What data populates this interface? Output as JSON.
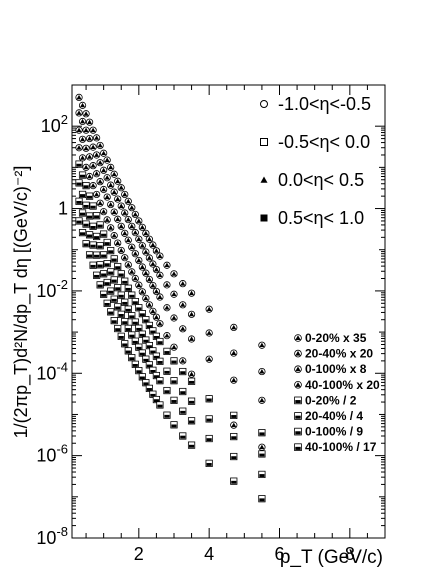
{
  "chart_data": {
    "type": "scatter",
    "xlabel": "p_T (GeV/c)",
    "ylabel": "1/(2πp_T)d²N/dp_T dη [(GeV/c)⁻²]",
    "xlim": [
      0.1,
      9.0
    ],
    "ylim": [
      1e-08,
      1000
    ],
    "yscale": "log",
    "grid": false,
    "x_ticks": [
      2,
      4,
      6,
      8
    ],
    "y_ticks": [
      "10^2",
      "1",
      "10^-2",
      "10^-4",
      "10^-6",
      "10^-8"
    ],
    "eta_legend": [
      {
        "label": "-1.0<η<-0.5",
        "marker": "open-circle"
      },
      {
        "label": "-0.5<η< 0.0",
        "marker": "open-square"
      },
      {
        "label": "0.0<η< 0.5",
        "marker": "filled-triangle"
      },
      {
        "label": "0.5<η< 1.0",
        "marker": "filled-square"
      }
    ],
    "centrality_legend": [
      {
        "label": "0-20% x 35",
        "marker": "triangle-in-circle"
      },
      {
        "label": "20-40% x 20",
        "marker": "triangle-in-circle"
      },
      {
        "label": "0-100% x 8",
        "marker": "triangle-in-circle"
      },
      {
        "label": "40-100% x 20",
        "marker": "triangle-in-circle"
      },
      {
        "label": "0-20% / 2",
        "marker": "square-in-square"
      },
      {
        "label": "20-40% / 4",
        "marker": "square-in-square"
      },
      {
        "label": "0-100% / 9",
        "marker": "square-in-square"
      },
      {
        "label": "40-100% / 17",
        "marker": "square-in-square"
      }
    ],
    "series": [
      {
        "name": "0-20% x 35",
        "marker": "circle-set",
        "x": [
          0.3,
          0.4,
          0.5,
          0.6,
          0.7,
          0.8,
          0.9,
          1.0,
          1.1,
          1.2,
          1.3,
          1.4,
          1.5,
          1.6,
          1.7,
          1.8,
          1.9,
          2.0,
          2.1,
          2.2,
          2.3,
          2.4,
          2.5,
          2.6,
          2.8,
          3.0,
          3.25,
          3.5,
          4.0,
          4.7,
          5.5
        ],
        "y": [
          500,
          320,
          200,
          125,
          80,
          52,
          34,
          22,
          15,
          10,
          6.8,
          4.6,
          3.2,
          2.2,
          1.5,
          1.05,
          0.72,
          0.5,
          0.35,
          0.25,
          0.18,
          0.13,
          0.094,
          0.07,
          0.042,
          0.026,
          0.015,
          0.0088,
          0.0036,
          0.0013,
          0.00048
        ]
      },
      {
        "name": "20-40% x 20",
        "marker": "circle-set",
        "x": [
          0.3,
          0.4,
          0.5,
          0.6,
          0.7,
          0.8,
          0.9,
          1.0,
          1.1,
          1.2,
          1.3,
          1.4,
          1.5,
          1.6,
          1.7,
          1.8,
          1.9,
          2.0,
          2.1,
          2.2,
          2.3,
          2.4,
          2.5,
          2.6,
          2.8,
          3.0,
          3.25,
          3.5,
          4.0,
          4.7,
          5.5
        ],
        "y": [
          210,
          130,
          80,
          50,
          31,
          20,
          13,
          8.5,
          5.6,
          3.7,
          2.5,
          1.7,
          1.15,
          0.78,
          0.54,
          0.37,
          0.26,
          0.18,
          0.125,
          0.088,
          0.063,
          0.045,
          0.033,
          0.024,
          0.014,
          0.0083,
          0.0046,
          0.0027,
          0.00095,
          0.00031,
          0.00011
        ]
      },
      {
        "name": "0-100% x 8",
        "marker": "circle-set",
        "x": [
          0.3,
          0.4,
          0.5,
          0.6,
          0.7,
          0.8,
          0.9,
          1.0,
          1.1,
          1.2,
          1.3,
          1.4,
          1.5,
          1.6,
          1.7,
          1.8,
          1.9,
          2.0,
          2.1,
          2.2,
          2.3,
          2.4,
          2.5,
          2.6,
          2.8,
          3.0,
          3.25,
          3.5,
          4.0,
          4.7,
          5.5
        ],
        "y": [
          80,
          48,
          29,
          18,
          11,
          7,
          4.5,
          2.9,
          1.9,
          1.25,
          0.82,
          0.55,
          0.37,
          0.25,
          0.17,
          0.115,
          0.08,
          0.055,
          0.038,
          0.027,
          0.019,
          0.0135,
          0.0097,
          0.0071,
          0.0039,
          0.0022,
          0.0012,
          0.00068,
          0.00022,
          6.8e-05,
          2.2e-05
        ]
      },
      {
        "name": "40-100% x 20",
        "marker": "circle-set",
        "x": [
          0.3,
          0.4,
          0.5,
          0.6,
          0.7,
          0.8,
          0.9,
          1.0,
          1.1,
          1.2,
          1.3,
          1.4,
          1.5,
          1.6,
          1.7,
          1.8,
          1.9,
          2.0,
          2.1,
          2.2,
          2.3,
          2.4,
          2.5,
          2.6,
          2.8,
          3.0,
          3.25,
          3.5,
          4.0,
          4.7,
          5.5
        ],
        "y": [
          30,
          17,
          10,
          6,
          3.6,
          2.2,
          1.35,
          0.84,
          0.53,
          0.34,
          0.22,
          0.145,
          0.096,
          0.064,
          0.043,
          0.029,
          0.02,
          0.0138,
          0.0095,
          0.0066,
          0.0046,
          0.0032,
          0.0023,
          0.0016,
          0.00082,
          0.00043,
          0.0002,
          9.5e-05,
          2.4e-05,
          5.5e-06,
          1.6e-06
        ]
      },
      {
        "name": "0-20% / 2",
        "marker": "square-set",
        "x": [
          0.3,
          0.4,
          0.5,
          0.6,
          0.7,
          0.8,
          0.9,
          1.0,
          1.1,
          1.2,
          1.3,
          1.4,
          1.5,
          1.6,
          1.7,
          1.8,
          1.9,
          2.0,
          2.1,
          2.2,
          2.3,
          2.4,
          2.5,
          2.6,
          2.8,
          3.0,
          3.25,
          3.5,
          4.0,
          4.7,
          5.5
        ],
        "y": [
          12,
          6.5,
          3.6,
          2.0,
          1.15,
          0.67,
          0.4,
          0.24,
          0.15,
          0.095,
          0.06,
          0.039,
          0.026,
          0.0172,
          0.0116,
          0.0079,
          0.0055,
          0.0039,
          0.0028,
          0.002,
          0.00145,
          0.00107,
          0.00079,
          0.00059,
          0.00034,
          0.0002,
          0.00011,
          6.4e-05,
          2.4e-05,
          9.5e-06,
          3.6e-06
        ]
      },
      {
        "name": "20-40% / 4",
        "marker": "square-set",
        "x": [
          0.3,
          0.4,
          0.5,
          0.6,
          0.7,
          0.8,
          0.9,
          1.0,
          1.1,
          1.2,
          1.3,
          1.4,
          1.5,
          1.6,
          1.7,
          1.8,
          1.9,
          2.0,
          2.1,
          2.2,
          2.3,
          2.4,
          2.5,
          2.6,
          2.8,
          3.0,
          3.25,
          3.5,
          4.0,
          4.7,
          5.5
        ],
        "y": [
          4.2,
          2.2,
          1.2,
          0.66,
          0.37,
          0.21,
          0.125,
          0.075,
          0.046,
          0.029,
          0.0185,
          0.012,
          0.0079,
          0.0053,
          0.0036,
          0.0025,
          0.00175,
          0.00124,
          0.00089,
          0.00064,
          0.00047,
          0.00035,
          0.00026,
          0.000195,
          0.000112,
          6.6e-05,
          3.6e-05,
          2.1e-05,
          7.8e-06,
          2.9e-06,
          1.1e-06
        ]
      },
      {
        "name": "0-100% / 9",
        "marker": "square-set",
        "x": [
          0.3,
          0.4,
          0.5,
          0.6,
          0.7,
          0.8,
          0.9,
          1.0,
          1.1,
          1.2,
          1.3,
          1.4,
          1.5,
          1.6,
          1.7,
          1.8,
          1.9,
          2.0,
          2.1,
          2.2,
          2.3,
          2.4,
          2.5,
          2.6,
          2.8,
          3.0,
          3.25,
          3.5,
          4.0,
          4.7,
          5.5
        ],
        "y": [
          1.5,
          0.78,
          0.42,
          0.23,
          0.13,
          0.074,
          0.043,
          0.026,
          0.016,
          0.0099,
          0.0063,
          0.0041,
          0.0027,
          0.0018,
          0.00123,
          0.00085,
          0.0006,
          0.00043,
          0.00031,
          0.00022,
          0.00016,
          0.000118,
          8.8e-05,
          6.6e-05,
          3.8e-05,
          2.2e-05,
          1.2e-05,
          7e-06,
          2.6e-06,
          9.5e-07,
          3.5e-07
        ]
      },
      {
        "name": "40-100% / 17",
        "marker": "square-set",
        "x": [
          0.3,
          0.4,
          0.5,
          0.6,
          0.7,
          0.8,
          0.9,
          1.0,
          1.1,
          1.2,
          1.3,
          1.4,
          1.5,
          1.6,
          1.7,
          1.8,
          1.9,
          2.0,
          2.1,
          2.2,
          2.3,
          2.4,
          2.5,
          2.6,
          2.8,
          3.0,
          3.25,
          3.5,
          4.0,
          4.7,
          5.5
        ],
        "y": [
          0.5,
          0.26,
          0.14,
          0.075,
          0.042,
          0.024,
          0.014,
          0.0083,
          0.005,
          0.0031,
          0.0019,
          0.00122,
          0.00079,
          0.00052,
          0.00035,
          0.00024,
          0.000165,
          0.000116,
          8.2e-05,
          5.9e-05,
          4.3e-05,
          3.1e-05,
          2.3e-05,
          1.7e-05,
          9.6e-06,
          5.6e-06,
          3e-06,
          1.8e-06,
          6.5e-07,
          2.4e-07,
          9e-08
        ]
      }
    ]
  }
}
